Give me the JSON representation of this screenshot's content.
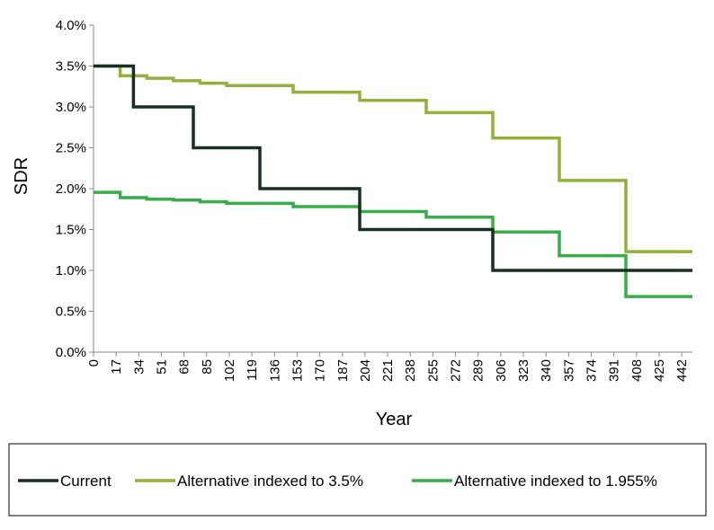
{
  "chart_data": {
    "type": "line",
    "title": "",
    "xlabel": "Year",
    "ylabel": "SDR",
    "x_ticks": [
      0,
      17,
      34,
      51,
      68,
      85,
      102,
      119,
      136,
      153,
      170,
      187,
      204,
      221,
      238,
      255,
      272,
      289,
      306,
      323,
      340,
      357,
      374,
      391,
      408,
      425,
      442
    ],
    "y_ticks": [
      0,
      0.005,
      0.01,
      0.015,
      0.02,
      0.025,
      0.03,
      0.035,
      0.04
    ],
    "y_tick_labels": [
      "0.0%",
      "0.5%",
      "1.0%",
      "1.5%",
      "2.0%",
      "2.5%",
      "3.0%",
      "3.5%",
      "4.0%"
    ],
    "xlim": [
      0,
      450
    ],
    "ylim": [
      0,
      0.04
    ],
    "grid": false,
    "legend_position": "bottom",
    "series": [
      {
        "name": "Current",
        "color": "#17301f",
        "step_points": [
          [
            0,
            0.035
          ],
          [
            30,
            0.035
          ],
          [
            30,
            0.03
          ],
          [
            75,
            0.03
          ],
          [
            75,
            0.025
          ],
          [
            125,
            0.025
          ],
          [
            125,
            0.02
          ],
          [
            200,
            0.02
          ],
          [
            200,
            0.015
          ],
          [
            300,
            0.015
          ],
          [
            300,
            0.01
          ],
          [
            450,
            0.01
          ]
        ]
      },
      {
        "name": "Alternative indexed to 3.5%",
        "color": "#92b13a",
        "step_points": [
          [
            0,
            0.035
          ],
          [
            20,
            0.035
          ],
          [
            20,
            0.0338
          ],
          [
            40,
            0.0338
          ],
          [
            40,
            0.0335
          ],
          [
            60,
            0.0335
          ],
          [
            60,
            0.0332
          ],
          [
            80,
            0.0332
          ],
          [
            80,
            0.0329
          ],
          [
            100,
            0.0329
          ],
          [
            100,
            0.0326
          ],
          [
            150,
            0.0326
          ],
          [
            150,
            0.0318
          ],
          [
            200,
            0.0318
          ],
          [
            200,
            0.0308
          ],
          [
            250,
            0.0308
          ],
          [
            250,
            0.0293
          ],
          [
            300,
            0.0293
          ],
          [
            300,
            0.0262
          ],
          [
            350,
            0.0262
          ],
          [
            350,
            0.021
          ],
          [
            400,
            0.021
          ],
          [
            400,
            0.0123
          ],
          [
            450,
            0.0123
          ]
        ]
      },
      {
        "name": "Alternative indexed to 1.955%",
        "color": "#3aac4b",
        "step_points": [
          [
            0,
            0.01955
          ],
          [
            20,
            0.01955
          ],
          [
            20,
            0.0189
          ],
          [
            40,
            0.0189
          ],
          [
            40,
            0.0187
          ],
          [
            60,
            0.0187
          ],
          [
            60,
            0.0186
          ],
          [
            80,
            0.0186
          ],
          [
            80,
            0.0184
          ],
          [
            100,
            0.0184
          ],
          [
            100,
            0.0182
          ],
          [
            150,
            0.0182
          ],
          [
            150,
            0.0178
          ],
          [
            200,
            0.0178
          ],
          [
            200,
            0.0172
          ],
          [
            250,
            0.0172
          ],
          [
            250,
            0.0165
          ],
          [
            300,
            0.0165
          ],
          [
            300,
            0.0147
          ],
          [
            350,
            0.0147
          ],
          [
            350,
            0.0118
          ],
          [
            400,
            0.0118
          ],
          [
            400,
            0.0068
          ],
          [
            450,
            0.0068
          ]
        ]
      }
    ]
  }
}
